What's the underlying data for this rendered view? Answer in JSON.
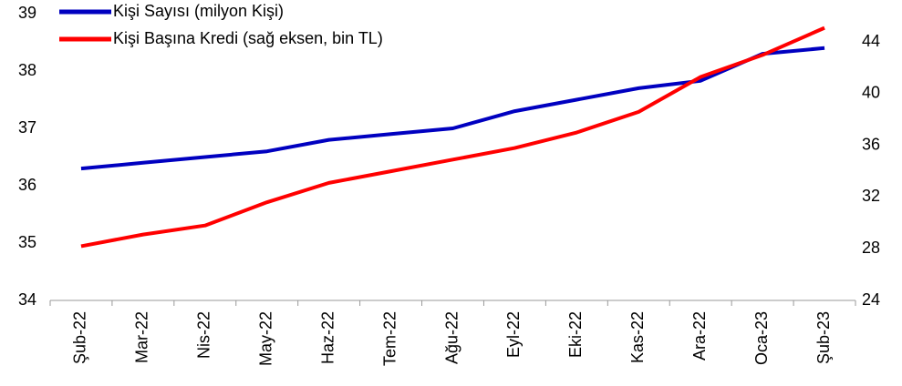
{
  "chart_data": {
    "type": "line",
    "categories": [
      "Şub-22",
      "Mar-22",
      "Nis-22",
      "May-22",
      "Haz-22",
      "Tem-22",
      "Ağu-22",
      "Eyl-22",
      "Eki-22",
      "Kas-22",
      "Ara-22",
      "Oca-23",
      "Şub-23"
    ],
    "series": [
      {
        "name": "Kişi Sayısı (milyon Kişi)",
        "color": "#0000c0",
        "values": [
          36.3,
          36.4,
          36.5,
          36.6,
          36.8,
          36.9,
          37.0,
          37.3,
          37.5,
          37.7,
          37.83,
          38.3,
          38.4
        ]
      },
      {
        "name": "Kişi Başına Kredi (sağ eksen, bin TL)",
        "color": "#ff0000",
        "axis": "y2",
        "values": [
          28.2,
          29.1,
          29.8,
          31.6,
          33.1,
          34.0,
          34.9,
          35.8,
          37.0,
          38.6,
          41.3,
          43.0,
          45.1
        ]
      }
    ],
    "ylim": [
      34,
      39
    ],
    "yticks": [
      34,
      35,
      36,
      37,
      38,
      39
    ],
    "y2lim": [
      24,
      46.2
    ],
    "y2ticks": [
      24,
      28,
      32,
      36,
      40,
      44
    ],
    "legend": "top-left"
  }
}
